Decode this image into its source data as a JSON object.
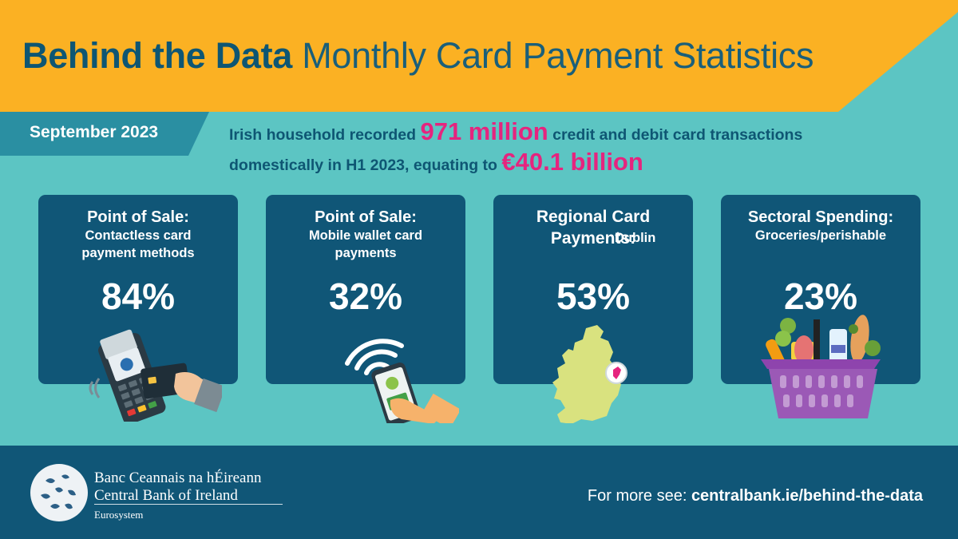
{
  "header": {
    "title_bold": "Behind the Data",
    "title_light": "Monthly Card Payment Statistics"
  },
  "period": "September 2023",
  "headline": {
    "line1_pre": "Irish household recorded",
    "line1_big": "971 million",
    "line1_post": "credit and debit card transactions",
    "line2_pre": "domestically in H1 2023, equating to",
    "line2_big": "€40.1 billion"
  },
  "cards": [
    {
      "title": "Point of Sale:",
      "subtitle": "Contactless card payment methods",
      "value": "84%",
      "icon": "card-terminal-icon"
    },
    {
      "title": "Point of Sale:",
      "subtitle": "Mobile wallet card payments",
      "value": "32%",
      "icon": "mobile-wallet-icon"
    },
    {
      "title": "Regional Card Payments:",
      "subtitle": "Dublin",
      "value": "53%",
      "icon": "ireland-map-icon"
    },
    {
      "title": "Sectoral Spending:",
      "subtitle": "Groceries/perishable",
      "value": "23%",
      "icon": "grocery-basket-icon"
    }
  ],
  "footer": {
    "bank_irish": "Banc Ceannais na hÉireann",
    "bank_english": "Central Bank of Ireland",
    "eurosystem": "Eurosystem",
    "more_prefix": "For more see:",
    "more_link": "centralbank.ie/behind-the-data"
  },
  "colors": {
    "background": "#5cc5c3",
    "banner": "#fbb123",
    "navy": "#105677",
    "accent_pink": "#e6247e"
  }
}
